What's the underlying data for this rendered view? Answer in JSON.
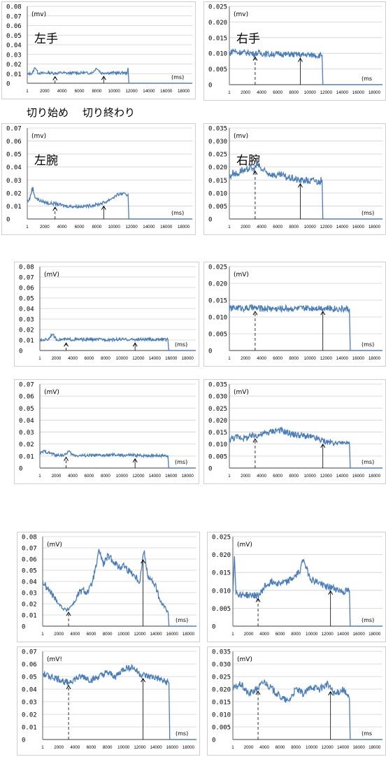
{
  "annotations": {
    "cut_start": "切り始め",
    "cut_end": "切り終わり"
  },
  "colors": {
    "line": "#4a7ebb",
    "grid": "#d0d0d0",
    "axis": "#666666",
    "text": "#000000"
  },
  "chart_data": [
    {
      "type": "line",
      "label": "左手",
      "unit": "(mv)",
      "xunit": "(ms)",
      "yticks": [
        "0",
        "0.01",
        "0.02",
        "0.03",
        "0.04",
        "0.05",
        "0.06",
        "0.07",
        "0.08"
      ],
      "ymax": 0.08,
      "xticks": [
        "1",
        "2000",
        "4000",
        "6000",
        "8000",
        "10000",
        "12000",
        "14000",
        "16000",
        "18000"
      ],
      "xmax": 19000,
      "x": [
        0,
        300,
        600,
        900,
        1200,
        1500,
        2000,
        2500,
        3000,
        3500,
        4000,
        4500,
        5000,
        5500,
        6000,
        6500,
        7000,
        7500,
        8000,
        8500,
        9000,
        9500,
        10000,
        10500,
        11000,
        11500,
        11600,
        11700,
        19000
      ],
      "y": [
        0.009,
        0.01,
        0.0105,
        0.017,
        0.011,
        0.0105,
        0.0105,
        0.011,
        0.0105,
        0.0105,
        0.011,
        0.0105,
        0.0105,
        0.011,
        0.0105,
        0.011,
        0.0105,
        0.011,
        0.016,
        0.0105,
        0.011,
        0.0105,
        0.011,
        0.0105,
        0.011,
        0.0105,
        0.016,
        0,
        0
      ],
      "arrow_x": [
        3200,
        8800
      ]
    },
    {
      "type": "line",
      "label": "右手",
      "unit": "(mv)",
      "xunit": "(ms",
      "yticks": [
        "0",
        "0.005",
        "0.010",
        "0.015",
        "0.020",
        "0.025"
      ],
      "ymax": 0.025,
      "xticks": [
        "1",
        "2000",
        "4000",
        "6000",
        "8000",
        "10000",
        "12000",
        "14000",
        "16000",
        "18000"
      ],
      "xmax": 19000,
      "x": [
        0,
        500,
        1000,
        1500,
        2000,
        2500,
        3000,
        3500,
        4000,
        4500,
        5000,
        5500,
        6000,
        6500,
        7000,
        7500,
        8000,
        8500,
        9000,
        9500,
        10000,
        10500,
        11000,
        11500,
        11600,
        19000
      ],
      "y": [
        0.0098,
        0.011,
        0.0102,
        0.0104,
        0.0101,
        0.0103,
        0.0098,
        0.0101,
        0.0099,
        0.01,
        0.0096,
        0.0099,
        0.0097,
        0.0099,
        0.0096,
        0.0098,
        0.0095,
        0.0097,
        0.0094,
        0.0096,
        0.0094,
        0.0095,
        0.0093,
        0.0095,
        0,
        0
      ],
      "arrow_x": [
        3200,
        8800
      ]
    },
    {
      "type": "line",
      "label": "左腕",
      "unit": "(mv)",
      "xunit": "(ms)",
      "yticks": [
        "0",
        "0.01",
        "0.02",
        "0.03",
        "0.04",
        "0.05",
        "0.06",
        "0.07"
      ],
      "ymax": 0.07,
      "xticks": [
        "1",
        "2000",
        "4000",
        "6000",
        "8000",
        "10000",
        "12000",
        "14000",
        "16000",
        "18000"
      ],
      "xmax": 19000,
      "x": [
        0,
        300,
        600,
        900,
        1200,
        1500,
        2000,
        2500,
        3000,
        3500,
        4000,
        4500,
        5000,
        5500,
        6000,
        6500,
        7000,
        7500,
        8000,
        8500,
        9000,
        9500,
        10000,
        10500,
        11000,
        11500,
        11600,
        11700,
        19000
      ],
      "y": [
        0.013,
        0.016,
        0.024,
        0.017,
        0.015,
        0.014,
        0.013,
        0.012,
        0.012,
        0.0115,
        0.0105,
        0.01,
        0.0098,
        0.0097,
        0.0096,
        0.0098,
        0.01,
        0.0105,
        0.011,
        0.012,
        0.013,
        0.015,
        0.017,
        0.019,
        0.0195,
        0.018,
        0.019,
        0,
        0
      ],
      "arrow_x": [
        3200,
        8800
      ]
    },
    {
      "type": "line",
      "label": "右腕",
      "unit": "(mv)",
      "xunit": "(ms)",
      "yticks": [
        "0",
        "0.005",
        "0.010",
        "0.015",
        "0.020",
        "0.025",
        "0.030",
        "0.035"
      ],
      "ymax": 0.035,
      "xticks": [
        "1",
        "2000",
        "4000",
        "6000",
        "8000",
        "10000",
        "12000",
        "14000",
        "16000",
        "18000"
      ],
      "xmax": 19000,
      "x": [
        0,
        500,
        1000,
        1500,
        2000,
        2500,
        3000,
        3500,
        4000,
        4500,
        5000,
        5500,
        6000,
        6500,
        7000,
        7500,
        8000,
        8500,
        9000,
        9500,
        10000,
        10500,
        11000,
        11500,
        11600,
        19000
      ],
      "y": [
        0.016,
        0.018,
        0.017,
        0.019,
        0.018,
        0.02,
        0.019,
        0.021,
        0.019,
        0.018,
        0.0175,
        0.017,
        0.0165,
        0.017,
        0.016,
        0.0158,
        0.0155,
        0.015,
        0.0148,
        0.015,
        0.0145,
        0.015,
        0.0142,
        0.015,
        0,
        0
      ],
      "arrow_x": [
        3200,
        8800
      ]
    },
    {
      "type": "line",
      "label": "",
      "unit": "(mV)",
      "xunit": "(ms)",
      "yticks": [
        "0",
        "0.01",
        "0.02",
        "0.03",
        "0.04",
        "0.05",
        "0.06",
        "0.07",
        "0.08"
      ],
      "ymax": 0.08,
      "xticks": [
        "1",
        "2000",
        "4000",
        "6000",
        "8000",
        "10000",
        "12000",
        "14000",
        "16000",
        "18000"
      ],
      "xmax": 19000,
      "x": [
        0,
        500,
        1000,
        1500,
        2000,
        2500,
        3000,
        3500,
        4000,
        5000,
        6000,
        7000,
        8000,
        9000,
        10000,
        11000,
        12000,
        13000,
        14000,
        15000,
        15600,
        15700,
        19000
      ],
      "y": [
        0.009,
        0.0105,
        0.0105,
        0.016,
        0.0105,
        0.0105,
        0.0105,
        0.0105,
        0.0105,
        0.0105,
        0.0105,
        0.0105,
        0.0105,
        0.0105,
        0.0105,
        0.0105,
        0.0105,
        0.0105,
        0.0105,
        0.0105,
        0.0105,
        0,
        0
      ],
      "arrow_x": [
        3200,
        11600
      ]
    },
    {
      "type": "line",
      "label": "",
      "unit": "(mV)",
      "xunit": "(ms)",
      "yticks": [
        "0",
        "0.005",
        "0.010",
        "0.015",
        "0.020",
        "0.025"
      ],
      "ymax": 0.025,
      "xticks": [
        "1",
        "2000",
        "4000",
        "6000",
        "8000",
        "10000",
        "12000",
        "14000",
        "16000",
        "18000"
      ],
      "xmax": 19000,
      "x": [
        0,
        1000,
        2000,
        3000,
        4000,
        5000,
        6000,
        7000,
        8000,
        9000,
        10000,
        11000,
        12000,
        13000,
        14000,
        14900,
        15000,
        19000
      ],
      "y": [
        0.0125,
        0.0128,
        0.0126,
        0.0127,
        0.0125,
        0.0126,
        0.0124,
        0.0126,
        0.0125,
        0.0125,
        0.0126,
        0.0128,
        0.0126,
        0.0125,
        0.0124,
        0.0124,
        0,
        0
      ],
      "arrow_x": [
        3200,
        11600
      ]
    },
    {
      "type": "line",
      "label": "",
      "unit": "(mV)",
      "xunit": "(ms)",
      "yticks": [
        "0",
        "0.01",
        "0.02",
        "0.03",
        "0.04",
        "0.05",
        "0.06",
        "0.07"
      ],
      "ymax": 0.07,
      "xticks": [
        "1",
        "2000",
        "4000",
        "6000",
        "8000",
        "10000",
        "12000",
        "14000",
        "16000",
        "18000"
      ],
      "xmax": 19000,
      "x": [
        0,
        500,
        1000,
        1500,
        2000,
        2500,
        3000,
        3500,
        4000,
        4500,
        5000,
        6000,
        7000,
        8000,
        9000,
        10000,
        11000,
        12000,
        13000,
        14000,
        15000,
        15600,
        15700,
        19000
      ],
      "y": [
        0.012,
        0.014,
        0.013,
        0.012,
        0.0105,
        0.011,
        0.0105,
        0.014,
        0.011,
        0.0105,
        0.0105,
        0.0105,
        0.0105,
        0.0105,
        0.011,
        0.0105,
        0.0108,
        0.0105,
        0.0105,
        0.0105,
        0.0105,
        0.0105,
        0,
        0
      ],
      "arrow_x": [
        3200,
        11600
      ]
    },
    {
      "type": "line",
      "label": "",
      "unit": "(mV)",
      "xunit": "(ms)",
      "yticks": [
        "0",
        "0.005",
        "0.010",
        "0.015",
        "0.020",
        "0.025",
        "0.030",
        "0.035"
      ],
      "ymax": 0.035,
      "xticks": [
        "1",
        "2000",
        "4000",
        "6000",
        "8000",
        "10000",
        "12000",
        "14000",
        "16000",
        "18000"
      ],
      "xmax": 19000,
      "x": [
        0,
        1000,
        2000,
        3000,
        4000,
        5000,
        6000,
        7000,
        8000,
        9000,
        10000,
        11000,
        12000,
        13000,
        14000,
        14900,
        15000,
        19000
      ],
      "y": [
        0.012,
        0.013,
        0.0125,
        0.0135,
        0.014,
        0.015,
        0.016,
        0.015,
        0.014,
        0.0135,
        0.013,
        0.012,
        0.011,
        0.0105,
        0.0105,
        0.0105,
        0,
        0
      ],
      "arrow_x": [
        3200,
        11600
      ]
    },
    {
      "type": "line",
      "label": "",
      "unit": "(mV)",
      "xunit": "(ms)",
      "yticks": [
        "0",
        "0.01",
        "0.02",
        "0.03",
        "0.04",
        "0.05",
        "0.06",
        "0.07",
        "0.08"
      ],
      "ymax": 0.08,
      "xticks": [
        "1",
        "2000",
        "4000",
        "6000",
        "8000",
        "10000",
        "12000",
        "14000",
        "16000",
        "18000"
      ],
      "xmax": 19000,
      "x": [
        0,
        500,
        1000,
        1500,
        2000,
        2500,
        3000,
        3500,
        4000,
        4500,
        5000,
        5500,
        6000,
        6500,
        7000,
        7500,
        8000,
        8500,
        9000,
        9500,
        10000,
        10500,
        11000,
        11500,
        12000,
        12500,
        13000,
        13500,
        14000,
        14500,
        15000,
        15500,
        15600,
        19000
      ],
      "y": [
        0.04,
        0.034,
        0.03,
        0.025,
        0.02,
        0.016,
        0.014,
        0.018,
        0.022,
        0.03,
        0.032,
        0.03,
        0.036,
        0.05,
        0.068,
        0.055,
        0.062,
        0.06,
        0.056,
        0.052,
        0.055,
        0.05,
        0.048,
        0.044,
        0.04,
        0.068,
        0.045,
        0.04,
        0.035,
        0.022,
        0.018,
        0.012,
        0,
        0
      ],
      "arrow_x": [
        3200,
        12400
      ]
    },
    {
      "type": "line",
      "label": "",
      "unit": "(mV)",
      "xunit": "(ms)",
      "yticks": [
        "0",
        "0.005",
        "0.010",
        "0.015",
        "0.020",
        "0.025"
      ],
      "ymax": 0.025,
      "xticks": [
        "1",
        "2000",
        "4000",
        "6000",
        "8000",
        "10000",
        "12000",
        "14000",
        "16000",
        "18000"
      ],
      "xmax": 19000,
      "x": [
        0,
        200,
        400,
        600,
        1000,
        1500,
        2000,
        2500,
        3000,
        3500,
        4000,
        5000,
        6000,
        7000,
        8000,
        8500,
        9000,
        9500,
        10000,
        11000,
        12000,
        13000,
        14000,
        14800,
        14900,
        19000
      ],
      "y": [
        0.009,
        0.02,
        0.0095,
        0.009,
        0.0088,
        0.0089,
        0.0085,
        0.0087,
        0.0085,
        0.009,
        0.011,
        0.0125,
        0.012,
        0.0125,
        0.014,
        0.0155,
        0.019,
        0.015,
        0.013,
        0.012,
        0.011,
        0.0105,
        0.0095,
        0.01,
        0,
        0
      ],
      "arrow_x": [
        3200,
        12400
      ]
    },
    {
      "type": "line",
      "label": "",
      "unit": "(mV!",
      "xunit": "(ms)",
      "yticks": [
        "0",
        "0.01",
        "0.02",
        "0.03",
        "0.04",
        "0.05",
        "0.06",
        "0.07"
      ],
      "ymax": 0.07,
      "xticks": [
        "1",
        "2000",
        "4000",
        "6000",
        "8000",
        "10000",
        "12000",
        "14000",
        "16000",
        "18000"
      ],
      "xmax": 19000,
      "x": [
        0,
        1000,
        2000,
        3000,
        4000,
        5000,
        6000,
        7000,
        8000,
        9000,
        10000,
        11000,
        12000,
        13000,
        14000,
        15000,
        15600,
        15700,
        19000
      ],
      "y": [
        0.052,
        0.05,
        0.048,
        0.045,
        0.048,
        0.05,
        0.047,
        0.05,
        0.053,
        0.05,
        0.056,
        0.058,
        0.052,
        0.05,
        0.049,
        0.046,
        0.045,
        0,
        0
      ],
      "arrow_x": [
        3200,
        12400
      ]
    },
    {
      "type": "line",
      "label": "",
      "unit": "(mV)",
      "xunit": "(ms",
      "yticks": [
        "0",
        "0.005",
        "0.010",
        "0.015",
        "0.020",
        "0.025",
        "0.030",
        "0.035"
      ],
      "ymax": 0.035,
      "xticks": [
        "1",
        "2000",
        "4000",
        "6000",
        "8000",
        "10000",
        "12000",
        "14000",
        "16000",
        "18000"
      ],
      "xmax": 19000,
      "x": [
        0,
        1000,
        2000,
        3000,
        4000,
        5000,
        6000,
        7000,
        8000,
        9000,
        10000,
        11000,
        12000,
        13000,
        14000,
        14800,
        14900,
        19000
      ],
      "y": [
        0.02,
        0.022,
        0.018,
        0.02,
        0.023,
        0.02,
        0.017,
        0.015,
        0.02,
        0.018,
        0.021,
        0.02,
        0.022,
        0.018,
        0.02,
        0.016,
        0,
        0
      ],
      "arrow_x": [
        3200,
        12400
      ]
    }
  ]
}
